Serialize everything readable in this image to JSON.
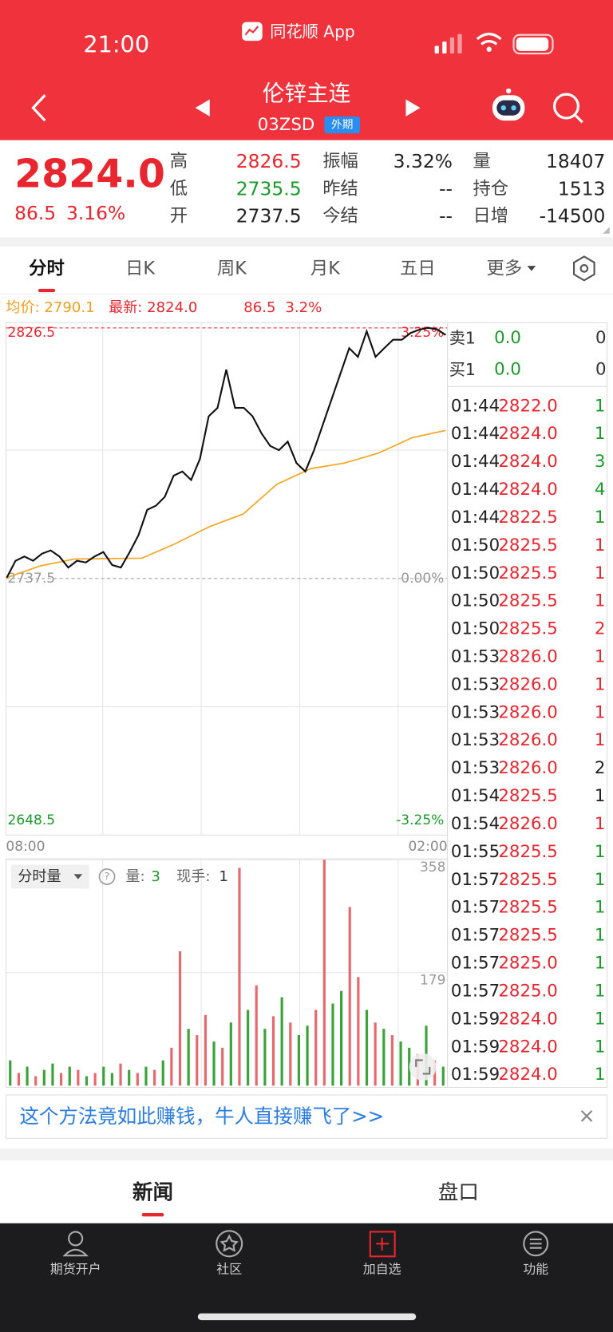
{
  "status_bar": {
    "time": "21:00",
    "app": "同花顺 App"
  },
  "header": {
    "title": "伦锌主连",
    "code": "03ZSD",
    "badge": "外期"
  },
  "quote": {
    "price": "2824.0",
    "change": "86.5",
    "change_pct": "3.16%",
    "stats": [
      {
        "label": "高",
        "value": "2826.5",
        "color": "#e8262f"
      },
      {
        "label": "振幅",
        "value": "3.32%",
        "color": "#222222"
      },
      {
        "label": "量",
        "value": "18407",
        "color": "#222222"
      },
      {
        "label": "低",
        "value": "2735.5",
        "color": "#1a9a2a"
      },
      {
        "label": "昨结",
        "value": "--",
        "color": "#222222"
      },
      {
        "label": "持仓",
        "value": "1513",
        "color": "#222222"
      },
      {
        "label": "开",
        "value": "2737.5",
        "color": "#222222"
      },
      {
        "label": "今结",
        "value": "--",
        "color": "#222222"
      },
      {
        "label": "日增",
        "value": "-14500",
        "color": "#222222"
      }
    ]
  },
  "tabs": [
    "分时",
    "日K",
    "周K",
    "月K",
    "五日",
    "更多"
  ],
  "info": {
    "avg": "均价: 2790.1",
    "latest": "最新: 2824.0",
    "change": "86.5",
    "change_pct": "3.2%"
  },
  "price_chart": {
    "type": "line",
    "ylim": [
      2648.5,
      2826.5
    ],
    "yticks": [
      2648.5,
      2737.5,
      2826.5
    ],
    "ytick_colors": [
      "#1a9a2a",
      "#999999",
      "#e8262f"
    ],
    "pct_labels": [
      "-3.25%",
      "0.00%",
      "3.25%"
    ],
    "x_labels": [
      "08:00",
      "02:00"
    ],
    "series": [
      {
        "color": "#111111",
        "values": [
          2737.8,
          2743.8,
          2745.3,
          2743.8,
          2746.3,
          2747.5,
          2745.3,
          2741.4,
          2743.8,
          2743.2,
          2745.3,
          2746.9,
          2742.3,
          2741.4,
          2746.9,
          2752.9,
          2761.9,
          2763.4,
          2766.5,
          2774.0,
          2775.5,
          2772.5,
          2780.0,
          2795.1,
          2798.1,
          2811.7,
          2798.1,
          2798.1,
          2795.1,
          2789.1,
          2784.6,
          2783.1,
          2786.1,
          2778.5,
          2775.5,
          2783.1,
          2792.1,
          2801.2,
          2810.2,
          2819.3,
          2816.2,
          2825.3,
          2816.2,
          2819.3,
          2822.3,
          2822.3,
          2824.7,
          2825.9,
          2826.5,
          2826.0,
          2824.0
        ]
      },
      {
        "color": "#f5a623",
        "values": [
          2737.8,
          2742.0,
          2744.4,
          2744.6,
          2744.7,
          2749.9,
          2755.9,
          2760.4,
          2771.0,
          2776.5,
          2778.5,
          2782.0,
          2787.5,
          2790.1
        ]
      }
    ]
  },
  "volume_chart": {
    "type": "bar",
    "ylim": [
      0,
      358
    ],
    "yticks": [
      179,
      358
    ],
    "legend": "分时量",
    "qty_label": "量:",
    "qty": "3",
    "hand_label": "现手:",
    "hand": "1",
    "values": [
      40,
      20,
      30,
      15,
      25,
      35,
      20,
      30,
      25,
      15,
      20,
      30,
      20,
      35,
      25,
      20,
      30,
      25,
      40,
      60,
      213,
      90,
      80,
      112,
      70,
      60,
      100,
      345,
      120,
      159,
      90,
      110,
      140,
      100,
      80,
      95,
      120,
      358,
      130,
      150,
      283,
      172,
      120,
      100,
      90,
      80,
      70,
      60,
      50,
      95,
      40,
      30
    ],
    "colors": [
      "#3aa33a",
      "#e8686f",
      "#3aa33a",
      "#e8686f",
      "#3aa33a",
      "#3aa33a",
      "#e8686f",
      "#3aa33a",
      "#e8686f",
      "#3aa33a",
      "#e8686f",
      "#3aa33a",
      "#3aa33a",
      "#e8686f",
      "#3aa33a",
      "#e8686f",
      "#3aa33a",
      "#e8686f",
      "#3aa33a",
      "#e8686f",
      "#e8686f",
      "#3aa33a",
      "#e8686f",
      "#e8686f",
      "#3aa33a",
      "#e8686f",
      "#3aa33a",
      "#e8686f",
      "#3aa33a",
      "#e8686f",
      "#3aa33a",
      "#e8686f",
      "#3aa33a",
      "#e8686f",
      "#3aa33a",
      "#3aa33a",
      "#e8686f",
      "#e8686f",
      "#3aa33a",
      "#3aa33a",
      "#e8686f",
      "#e8686f",
      "#3aa33a",
      "#e8686f",
      "#3aa33a",
      "#e8686f",
      "#3aa33a",
      "#3aa33a",
      "#e8686f",
      "#3aa33a",
      "#e8686f",
      "#3aa33a"
    ]
  },
  "order_book": [
    {
      "label": "卖1",
      "price": "0.0",
      "volume": "0"
    },
    {
      "label": "买1",
      "price": "0.0",
      "volume": "0"
    }
  ],
  "trades": [
    {
      "time": "01:44",
      "price": "2822.0",
      "volume": "1",
      "color": "#1a9a2a"
    },
    {
      "time": "01:44",
      "price": "2824.0",
      "volume": "1",
      "color": "#1a9a2a"
    },
    {
      "time": "01:44",
      "price": "2824.0",
      "volume": "3",
      "color": "#1a9a2a"
    },
    {
      "time": "01:44",
      "price": "2824.0",
      "volume": "4",
      "color": "#1a9a2a"
    },
    {
      "time": "01:44",
      "price": "2822.5",
      "volume": "1",
      "color": "#1a9a2a"
    },
    {
      "time": "01:50",
      "price": "2825.5",
      "volume": "1",
      "color": "#e8262f"
    },
    {
      "time": "01:50",
      "price": "2825.5",
      "volume": "1",
      "color": "#e8262f"
    },
    {
      "time": "01:50",
      "price": "2825.5",
      "volume": "1",
      "color": "#e8262f"
    },
    {
      "time": "01:50",
      "price": "2825.5",
      "volume": "2",
      "color": "#e8262f"
    },
    {
      "time": "01:53",
      "price": "2826.0",
      "volume": "1",
      "color": "#e8262f"
    },
    {
      "time": "01:53",
      "price": "2826.0",
      "volume": "1",
      "color": "#e8262f"
    },
    {
      "time": "01:53",
      "price": "2826.0",
      "volume": "1",
      "color": "#e8262f"
    },
    {
      "time": "01:53",
      "price": "2826.0",
      "volume": "1",
      "color": "#e8262f"
    },
    {
      "time": "01:53",
      "price": "2826.0",
      "volume": "2",
      "color": "#222222"
    },
    {
      "time": "01:54",
      "price": "2825.5",
      "volume": "1",
      "color": "#222222"
    },
    {
      "time": "01:54",
      "price": "2826.0",
      "volume": "1",
      "color": "#e8262f"
    },
    {
      "time": "01:55",
      "price": "2825.5",
      "volume": "1",
      "color": "#1a9a2a"
    },
    {
      "time": "01:57",
      "price": "2825.5",
      "volume": "1",
      "color": "#1a9a2a"
    },
    {
      "time": "01:57",
      "price": "2825.5",
      "volume": "1",
      "color": "#1a9a2a"
    },
    {
      "time": "01:57",
      "price": "2825.5",
      "volume": "1",
      "color": "#1a9a2a"
    },
    {
      "time": "01:57",
      "price": "2825.0",
      "volume": "1",
      "color": "#1a9a2a"
    },
    {
      "time": "01:57",
      "price": "2825.0",
      "volume": "1",
      "color": "#1a9a2a"
    },
    {
      "time": "01:59",
      "price": "2824.0",
      "volume": "1",
      "color": "#1a9a2a"
    },
    {
      "time": "01:59",
      "price": "2824.0",
      "volume": "1",
      "color": "#1a9a2a"
    },
    {
      "time": "01:59",
      "price": "2824.0",
      "volume": "1",
      "color": "#1a9a2a"
    }
  ],
  "ad": {
    "text": "这个方法竟如此赚钱，牛人直接赚飞了>>",
    "close": "×"
  },
  "bottom_tabs": [
    "新闻",
    "盘口"
  ],
  "nav": [
    "期货开户",
    "社区",
    "加自选",
    "功能"
  ]
}
